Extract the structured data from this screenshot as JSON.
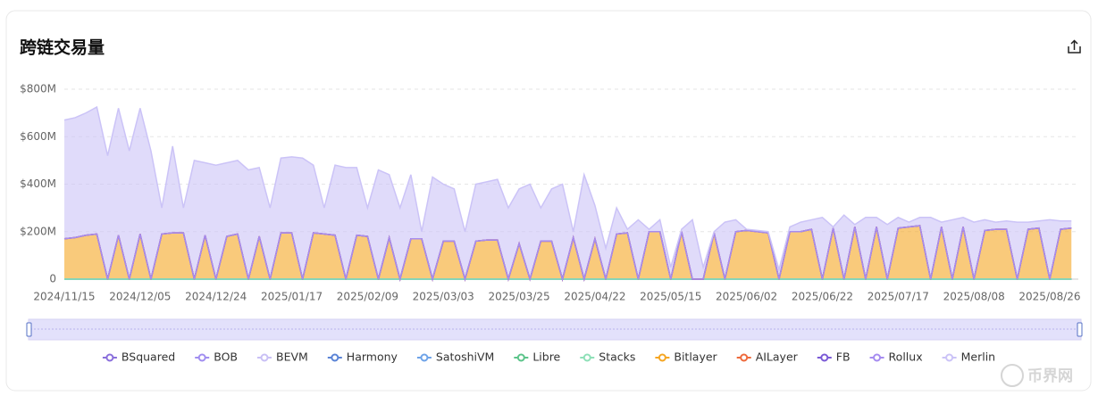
{
  "chart_data": {
    "type": "stacked-area",
    "title": "跨链交易量",
    "watermark": "币界网",
    "ylim": [
      0,
      800
    ],
    "yticks": [
      0,
      {
        "value": 200,
        "label": "$200M"
      },
      {
        "value": 400,
        "label": "$400M"
      },
      {
        "value": 600,
        "label": "$600M"
      },
      {
        "value": 800,
        "label": "$800M"
      }
    ],
    "grid": true,
    "categories": [
      "2024/11/15",
      null,
      null,
      null,
      null,
      null,
      null,
      "2024/12/05",
      null,
      null,
      null,
      null,
      null,
      null,
      "2024/12/24",
      null,
      null,
      null,
      null,
      null,
      null,
      "2025/01/17",
      null,
      null,
      null,
      null,
      null,
      null,
      "2025/02/09",
      null,
      null,
      null,
      null,
      null,
      null,
      "2025/03/03",
      null,
      null,
      null,
      null,
      null,
      null,
      "2025/03/25",
      null,
      null,
      null,
      null,
      null,
      null,
      "2025/04/22",
      null,
      null,
      null,
      null,
      null,
      null,
      "2025/05/15",
      null,
      null,
      null,
      null,
      null,
      null,
      "2025/06/02",
      null,
      null,
      null,
      null,
      null,
      null,
      "2025/06/22",
      null,
      null,
      null,
      null,
      null,
      null,
      "2025/07/17",
      null,
      null,
      null,
      null,
      null,
      null,
      "2025/08/08",
      null,
      null,
      null,
      null,
      null,
      null,
      "2025/08/26",
      null,
      null
    ],
    "series": [
      {
        "name": "BSquared",
        "color": "#8a6fdc",
        "values": [
          0,
          0,
          0,
          0,
          0,
          0,
          0,
          0,
          0,
          0,
          0,
          0,
          0,
          0,
          0,
          0,
          0,
          0,
          0,
          0,
          0,
          0,
          0,
          0,
          0,
          0,
          0,
          0,
          0,
          0,
          0,
          0,
          0,
          0,
          0,
          0,
          0,
          0,
          0,
          0,
          0,
          0,
          0,
          0,
          0,
          0,
          0,
          0,
          0,
          0,
          0,
          0,
          0,
          0,
          0,
          0,
          0,
          0,
          0,
          0,
          0,
          0,
          0,
          0,
          0,
          0,
          0,
          0,
          0,
          0,
          0,
          0,
          0,
          0,
          0,
          0,
          0,
          0,
          0,
          0,
          0,
          0,
          0,
          0,
          0,
          0,
          0,
          0,
          0,
          0,
          0,
          0,
          0,
          0
        ]
      },
      {
        "name": "BOB",
        "color": "#a18ef0",
        "values": [
          0,
          0,
          0,
          0,
          0,
          0,
          0,
          0,
          0,
          0,
          0,
          0,
          0,
          0,
          0,
          0,
          0,
          0,
          0,
          0,
          0,
          0,
          0,
          0,
          0,
          0,
          0,
          0,
          0,
          0,
          0,
          0,
          0,
          0,
          0,
          0,
          0,
          0,
          0,
          0,
          0,
          0,
          0,
          0,
          0,
          0,
          0,
          0,
          0,
          0,
          0,
          0,
          0,
          0,
          0,
          0,
          0,
          0,
          0,
          0,
          0,
          0,
          0,
          0,
          0,
          0,
          0,
          0,
          0,
          0,
          0,
          0,
          0,
          0,
          0,
          0,
          0,
          0,
          0,
          0,
          0,
          0,
          0,
          0,
          0,
          0,
          0,
          0,
          0,
          0,
          0,
          0,
          0,
          0
        ]
      },
      {
        "name": "BEVM",
        "color": "#c9c0f5",
        "values": [
          0,
          0,
          0,
          0,
          0,
          0,
          0,
          0,
          0,
          0,
          0,
          0,
          0,
          0,
          0,
          0,
          0,
          0,
          0,
          0,
          0,
          0,
          0,
          0,
          0,
          0,
          0,
          0,
          0,
          0,
          0,
          0,
          0,
          0,
          0,
          0,
          0,
          0,
          0,
          0,
          0,
          0,
          0,
          0,
          0,
          0,
          0,
          0,
          0,
          0,
          0,
          0,
          0,
          0,
          0,
          0,
          0,
          0,
          0,
          0,
          0,
          0,
          0,
          0,
          0,
          0,
          0,
          0,
          0,
          0,
          0,
          0,
          0,
          0,
          0,
          0,
          0,
          0,
          0,
          0,
          0,
          0,
          0,
          0,
          0,
          0,
          0,
          0,
          0,
          0,
          0,
          0,
          0,
          0
        ]
      },
      {
        "name": "Harmony",
        "color": "#5b84d6",
        "values": [
          0,
          0,
          0,
          0,
          0,
          0,
          0,
          0,
          0,
          0,
          0,
          0,
          0,
          0,
          0,
          0,
          0,
          0,
          0,
          0,
          0,
          0,
          0,
          0,
          0,
          0,
          0,
          0,
          0,
          0,
          0,
          0,
          0,
          0,
          0,
          0,
          0,
          0,
          0,
          0,
          0,
          0,
          0,
          0,
          0,
          0,
          0,
          0,
          0,
          0,
          0,
          0,
          0,
          0,
          0,
          0,
          0,
          0,
          0,
          0,
          0,
          0,
          0,
          0,
          0,
          0,
          0,
          0,
          0,
          0,
          0,
          0,
          0,
          0,
          0,
          0,
          0,
          0,
          0,
          0,
          0,
          0,
          0,
          0,
          0,
          0,
          0,
          0,
          0,
          0,
          0,
          0,
          0,
          0
        ]
      },
      {
        "name": "SatoshiVM",
        "color": "#6ea3e8",
        "values": [
          0,
          0,
          0,
          0,
          0,
          0,
          0,
          0,
          0,
          0,
          0,
          0,
          0,
          0,
          0,
          0,
          0,
          0,
          0,
          0,
          0,
          0,
          0,
          0,
          0,
          0,
          0,
          0,
          0,
          0,
          0,
          0,
          0,
          0,
          0,
          0,
          0,
          0,
          0,
          0,
          0,
          0,
          0,
          0,
          0,
          0,
          0,
          0,
          0,
          0,
          0,
          0,
          0,
          0,
          0,
          0,
          0,
          0,
          0,
          0,
          0,
          0,
          0,
          0,
          0,
          0,
          0,
          0,
          0,
          0,
          0,
          0,
          0,
          0,
          0,
          0,
          0,
          0,
          0,
          0,
          0,
          0,
          0,
          0,
          0,
          0,
          0,
          0,
          0,
          0,
          0,
          0,
          0,
          0
        ]
      },
      {
        "name": "Libre",
        "color": "#5cc48a",
        "values": [
          0,
          0,
          0,
          0,
          0,
          0,
          0,
          0,
          0,
          0,
          0,
          0,
          0,
          0,
          0,
          0,
          0,
          0,
          0,
          0,
          0,
          0,
          0,
          0,
          0,
          0,
          0,
          0,
          0,
          0,
          0,
          0,
          0,
          0,
          0,
          0,
          0,
          0,
          0,
          0,
          0,
          0,
          0,
          0,
          0,
          0,
          0,
          0,
          0,
          0,
          0,
          0,
          0,
          0,
          0,
          0,
          0,
          0,
          0,
          0,
          0,
          0,
          0,
          0,
          0,
          0,
          0,
          0,
          0,
          0,
          0,
          0,
          0,
          0,
          0,
          0,
          0,
          0,
          0,
          0,
          0,
          0,
          0,
          0,
          0,
          0,
          0,
          0,
          0,
          0,
          0,
          0,
          0,
          0
        ]
      },
      {
        "name": "Stacks",
        "color": "#8fe0b8",
        "values": [
          0,
          0,
          0,
          0,
          0,
          0,
          0,
          0,
          0,
          0,
          0,
          0,
          0,
          0,
          0,
          0,
          0,
          0,
          0,
          0,
          0,
          0,
          0,
          0,
          0,
          0,
          0,
          0,
          0,
          0,
          0,
          0,
          0,
          0,
          0,
          0,
          0,
          0,
          0,
          0,
          0,
          0,
          0,
          0,
          0,
          0,
          0,
          0,
          0,
          0,
          0,
          0,
          0,
          0,
          0,
          0,
          0,
          0,
          0,
          0,
          0,
          0,
          0,
          0,
          0,
          0,
          0,
          0,
          0,
          0,
          0,
          0,
          0,
          0,
          0,
          0,
          0,
          0,
          0,
          0,
          0,
          0,
          0,
          0,
          0,
          0,
          0,
          0,
          0,
          0,
          0,
          0,
          0,
          0
        ]
      },
      {
        "name": "Bitlayer",
        "color": "#f5a623",
        "values": [
          170,
          175,
          185,
          190,
          0,
          185,
          0,
          190,
          0,
          190,
          195,
          195,
          0,
          185,
          0,
          180,
          190,
          0,
          180,
          0,
          195,
          195,
          0,
          195,
          190,
          185,
          0,
          185,
          180,
          0,
          175,
          0,
          170,
          170,
          0,
          160,
          160,
          0,
          160,
          165,
          165,
          0,
          150,
          0,
          160,
          160,
          0,
          175,
          0,
          170,
          0,
          190,
          195,
          0,
          200,
          200,
          0,
          200,
          0,
          0,
          195,
          0,
          200,
          205,
          200,
          195,
          0,
          200,
          200,
          210,
          0,
          215,
          0,
          220,
          0,
          220,
          0,
          215,
          220,
          225,
          0,
          220,
          0,
          220,
          0,
          205,
          210,
          210,
          0,
          210,
          215,
          0,
          210,
          215
        ]
      },
      {
        "name": "AILayer",
        "color": "#ee6a3c",
        "values": [
          0,
          0,
          0,
          0,
          0,
          0,
          0,
          0,
          0,
          0,
          0,
          0,
          0,
          0,
          0,
          0,
          0,
          0,
          0,
          0,
          0,
          0,
          0,
          0,
          0,
          0,
          0,
          0,
          0,
          0,
          0,
          0,
          0,
          0,
          0,
          0,
          0,
          0,
          0,
          0,
          0,
          0,
          0,
          0,
          0,
          0,
          0,
          0,
          0,
          0,
          0,
          0,
          0,
          0,
          0,
          0,
          0,
          0,
          0,
          0,
          0,
          0,
          0,
          0,
          0,
          0,
          0,
          0,
          0,
          0,
          0,
          0,
          0,
          0,
          0,
          0,
          0,
          0,
          0,
          0,
          0,
          0,
          0,
          0,
          0,
          0,
          0,
          0,
          0,
          0,
          0,
          0,
          0,
          0
        ]
      },
      {
        "name": "FB",
        "color": "#7b5ad6",
        "values": [
          0,
          0,
          0,
          0,
          0,
          0,
          0,
          0,
          0,
          0,
          0,
          0,
          0,
          0,
          0,
          0,
          0,
          0,
          0,
          0,
          0,
          0,
          0,
          0,
          0,
          0,
          0,
          0,
          0,
          0,
          0,
          0,
          0,
          0,
          0,
          0,
          0,
          0,
          0,
          0,
          0,
          0,
          0,
          0,
          0,
          0,
          0,
          0,
          0,
          0,
          0,
          0,
          0,
          0,
          0,
          0,
          0,
          0,
          0,
          0,
          0,
          0,
          0,
          0,
          0,
          0,
          0,
          0,
          0,
          0,
          0,
          0,
          0,
          0,
          0,
          0,
          0,
          0,
          0,
          0,
          0,
          0,
          0,
          0,
          0,
          0,
          0,
          0,
          0,
          0,
          0,
          0,
          0,
          0
        ]
      },
      {
        "name": "Rollux",
        "color": "#a68cf0",
        "values": [
          0,
          0,
          0,
          0,
          0,
          0,
          0,
          0,
          0,
          0,
          0,
          0,
          0,
          0,
          0,
          0,
          0,
          0,
          0,
          0,
          0,
          0,
          0,
          0,
          0,
          0,
          0,
          0,
          0,
          0,
          0,
          0,
          0,
          0,
          0,
          0,
          0,
          0,
          0,
          0,
          0,
          0,
          0,
          0,
          0,
          0,
          0,
          0,
          0,
          0,
          0,
          0,
          0,
          0,
          0,
          0,
          0,
          0,
          0,
          0,
          0,
          0,
          0,
          0,
          0,
          0,
          0,
          0,
          0,
          0,
          0,
          0,
          0,
          0,
          0,
          0,
          0,
          0,
          0,
          0,
          0,
          0,
          0,
          0,
          0,
          0,
          0,
          0,
          0,
          0,
          0,
          0,
          0,
          0
        ]
      },
      {
        "name": "Merlin",
        "color": "#cbc3f7",
        "values": [
          500,
          505,
          515,
          535,
          520,
          535,
          540,
          530,
          540,
          110,
          365,
          105,
          500,
          305,
          480,
          310,
          310,
          460,
          290,
          300,
          315,
          320,
          510,
          285,
          110,
          295,
          470,
          285,
          120,
          460,
          265,
          300,
          270,
          30,
          430,
          240,
          220,
          200,
          240,
          245,
          255,
          300,
          230,
          400,
          140,
          220,
          400,
          25,
          440,
          140,
          130,
          110,
          15,
          250,
          10,
          50,
          50,
          10,
          250,
          50,
          5,
          240,
          50,
          5,
          5,
          5,
          40,
          20,
          40,
          40,
          260,
          5,
          270,
          10,
          260,
          40,
          230,
          45,
          20,
          35,
          260,
          20,
          250,
          40,
          240,
          45,
          30,
          35,
          240,
          30,
          30,
          250,
          35,
          30
        ]
      }
    ]
  }
}
